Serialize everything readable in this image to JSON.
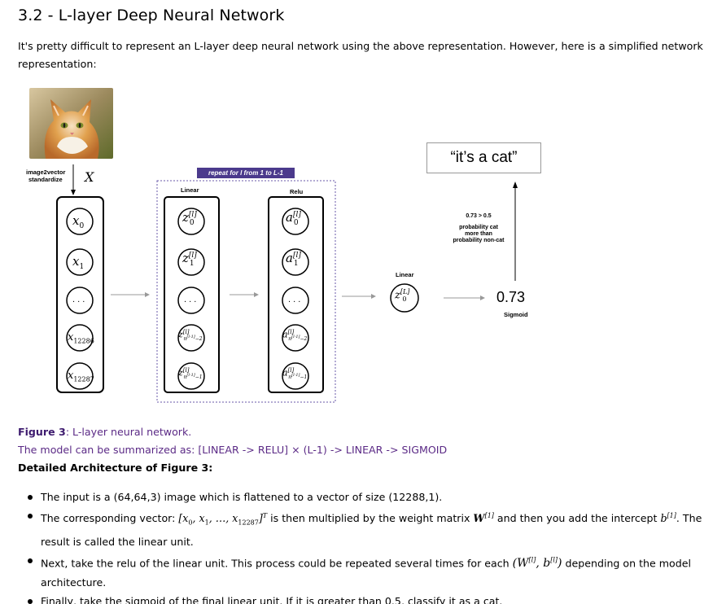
{
  "heading": "3.2 - L-layer Deep Neural Network",
  "intro": "It's pretty difficult to represent an L-layer deep neural network using the above representation. However, here is a simplified network representation:",
  "diagram": {
    "image2vector_label": "image2vector",
    "standardize_label": "standardize",
    "x_symbol": "X",
    "repeat_banner": "repeat for l from 1 to L-1",
    "linear_label": "Linear",
    "relu_label": "Relu",
    "final_linear_label": "Linear",
    "input_nodes": [
      "x0",
      "x1",
      "...",
      "x12286",
      "x12287"
    ],
    "z_nodes": [
      "z0[l]",
      "z1[l]",
      "...",
      "zn[l-1]-2[l]",
      "zn[l-1]-1[l]"
    ],
    "a_nodes": [
      "a0[l]",
      "a1[l]",
      "...",
      "an[l-1]-2[l]",
      "an[l-1]-1[l]"
    ],
    "output_node": "z0[L]",
    "output_value": "0.73",
    "sigmoid_label": "Sigmoid",
    "threshold_line1": "0.73 > 0.5",
    "threshold_line2": "probability cat",
    "threshold_line3": "more than",
    "threshold_line4": "probability non-cat",
    "cat_quote": "“it’s a cat”"
  },
  "figure_caption_bold": "Figure 3",
  "figure_caption_rest": ": L-layer neural network.",
  "summary": "The model can be summarized as: [LINEAR -> RELU] × (L-1) -> LINEAR -> SIGMOID",
  "arch_title_bold": "Detailed Architecture of Figure 3",
  "arch_title_rest": ":",
  "bullets": {
    "b1": "The input is a (64,64,3) image which is flattened to a vector of size (12288,1).",
    "b2_pre": "The corresponding vector: ",
    "b2_mid": " is then multiplied by the weight matrix ",
    "b2_mid2": " and then you add the intercept ",
    "b2_post": ". The result is called the linear unit.",
    "b3_pre": "Next, take the relu of the linear unit. This process could be repeated several times for each ",
    "b3_post": " depending on the model architecture.",
    "b4": "Finally, take the sigmoid of the final linear unit. If it is greater than 0.5, classify it as a cat."
  },
  "colors": {
    "caption_purple": "#5b2a86",
    "banner_purple": "#4b3a8c"
  }
}
